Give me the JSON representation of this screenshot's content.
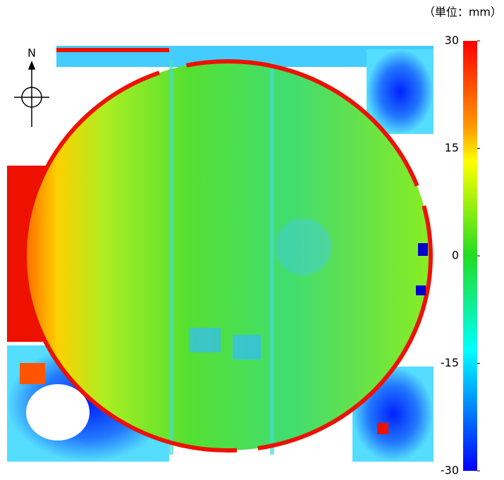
{
  "unit_label": "（単位：mm）",
  "compass": {
    "label": "N"
  },
  "colorbar": {
    "lim": [
      -30,
      30
    ],
    "ticks": [
      30,
      15,
      0,
      -15,
      -30
    ]
  }
}
